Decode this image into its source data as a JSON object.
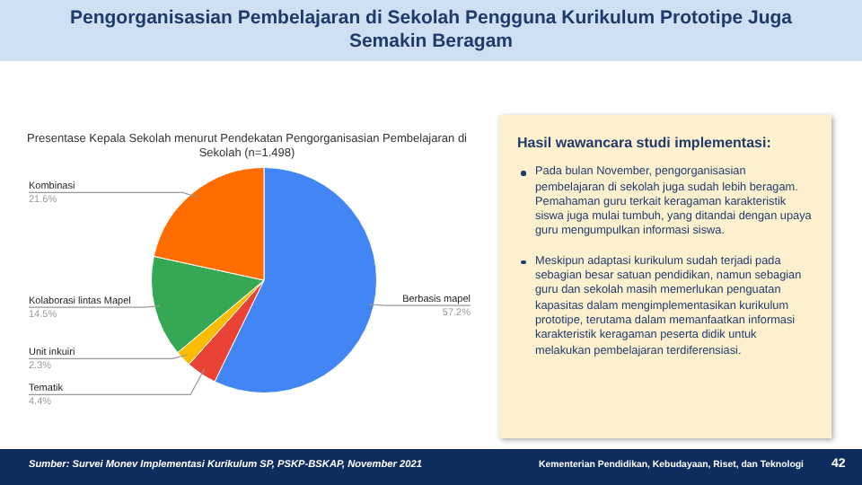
{
  "chart_data": {
    "type": "pie",
    "title": "Pengorganisasian Pembelajaran di Sekolah Pengguna Kurikulum Prototipe Juga Semakin Beragam",
    "subtitle": "Presentase Kepala Sekolah menurut Pendekatan Pengorganisasian Pembelajaran di Sekolah (n=1.498)",
    "categories": [
      "Berbasis mapel",
      "Tematik",
      "Unit inkuiri",
      "Kolaborasi lintas Mapel",
      "Kombinasi"
    ],
    "values": [
      57.2,
      4.4,
      2.3,
      14.5,
      21.6
    ],
    "colors": [
      "#4285f4",
      "#ea4335",
      "#fbbc04",
      "#34a853",
      "#ff6d01"
    ],
    "value_labels": [
      "57.2%",
      "4.4%",
      "2.3%",
      "14.5%",
      "21.6%"
    ],
    "legend": false,
    "annotations": [
      "Hasil wawancara studi implementasi:",
      "Pada bulan November, pengorganisasian pembelajaran di sekolah juga sudah lebih beragam. Pemahaman guru terkait keragaman karakteristik siswa juga mulai tumbuh, yang ditandai dengan upaya guru mengumpulkan informasi siswa.",
      "Meskipun adaptasi kurikulum sudah terjadi pada sebagian besar satuan pendidikan, namun sebagian guru dan sekolah masih memerlukan penguatan kapasitas dalam mengimplementasikan kurikulum prototipe, terutama dalam memanfaatkan informasi karakteristik keragaman peserta didik untuk melakukan pembelajaran terdiferensiasi.",
      "Sumber: Survei Monev Implementasi Kurikulum SP, PSKP-BSKAP, November 2021",
      "Kementerian Pendidikan, Kebudayaan, Riset, dan Teknologi",
      "42"
    ]
  }
}
